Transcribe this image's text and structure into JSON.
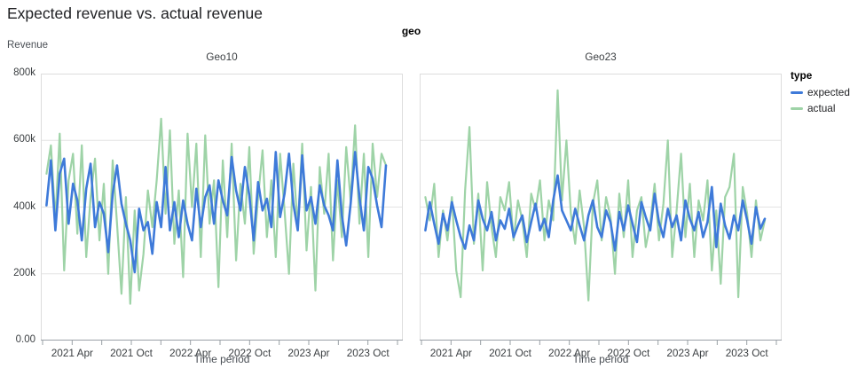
{
  "title": "Expected revenue vs. actual revenue",
  "chart_data": {
    "type": "line",
    "title": "Expected revenue vs. actual revenue",
    "facet_field": "geo",
    "x": {
      "label": "Time period",
      "start": "2021 Jan",
      "end": "2024 Jan",
      "months_span": 36,
      "ticks": [
        {
          "m": 0,
          "label": ""
        },
        {
          "m": 3,
          "label": "2021 Apr"
        },
        {
          "m": 6,
          "label": ""
        },
        {
          "m": 9,
          "label": "2021 Oct"
        },
        {
          "m": 12,
          "label": ""
        },
        {
          "m": 15,
          "label": "2022 Apr"
        },
        {
          "m": 18,
          "label": ""
        },
        {
          "m": 21,
          "label": "2022 Oct"
        },
        {
          "m": 24,
          "label": ""
        },
        {
          "m": 27,
          "label": "2023 Apr"
        },
        {
          "m": 30,
          "label": ""
        },
        {
          "m": 33,
          "label": "2023 Oct"
        },
        {
          "m": 36,
          "label": ""
        }
      ]
    },
    "y": {
      "label": "Revenue",
      "unit": "thousands",
      "max_k": 800,
      "ticks": [
        {
          "value_k": 0,
          "label": "0.00"
        },
        {
          "value_k": 200,
          "label": "200k"
        },
        {
          "value_k": 400,
          "label": "400k"
        },
        {
          "value_k": 600,
          "label": "600k"
        },
        {
          "value_k": 800,
          "label": "800k"
        }
      ]
    },
    "legend": {
      "title": "type",
      "items": [
        {
          "label": "expected",
          "color": "#3e7ad9"
        },
        {
          "label": "actual",
          "color": "#9ed3a7"
        }
      ]
    },
    "facets": [
      {
        "name": "Geo10",
        "series": [
          {
            "name": "expected",
            "color": "#3e7ad9",
            "values_k": [
              405,
              540,
              330,
              500,
              545,
              350,
              470,
              420,
              300,
              455,
              530,
              340,
              415,
              380,
              265,
              440,
              525,
              410,
              350,
              300,
              205,
              395,
              330,
              355,
              260,
              415,
              340,
              520,
              330,
              415,
              310,
              420,
              350,
              300,
              455,
              340,
              430,
              465,
              350,
              480,
              420,
              375,
              550,
              450,
              390,
              520,
              435,
              300,
              475,
              390,
              425,
              340,
              565,
              370,
              440,
              560,
              410,
              330,
              555,
              390,
              430,
              350,
              465,
              405,
              375,
              330,
              540,
              375,
              285,
              410,
              565,
              430,
              330,
              520,
              485,
              405,
              340,
              525
            ]
          },
          {
            "name": "actual",
            "color": "#9ed3a7",
            "values_k": [
              500,
              585,
              360,
              620,
              210,
              480,
              560,
              320,
              585,
              250,
              430,
              545,
              300,
              470,
              200,
              540,
              350,
              140,
              430,
              110,
              390,
              150,
              260,
              450,
              340,
              480,
              665,
              380,
              630,
              290,
              450,
              190,
              620,
              400,
              590,
              250,
              615,
              350,
              480,
              160,
              540,
              310,
              590,
              240,
              470,
              350,
              580,
              260,
              430,
              570,
              310,
              480,
              250,
              560,
              390,
              200,
              530,
              340,
              590,
              270,
              460,
              150,
              520,
              380,
              560,
              240,
              480,
              310,
              580,
              420,
              645,
              350,
              560,
              250,
              590,
              430,
              560,
              525
            ]
          }
        ]
      },
      {
        "name": "Geo23",
        "series": [
          {
            "name": "expected",
            "color": "#3e7ad9",
            "values_k": [
              330,
              415,
              350,
              290,
              380,
              330,
              415,
              360,
              310,
              275,
              345,
              300,
              420,
              365,
              330,
              385,
              300,
              360,
              335,
              395,
              310,
              345,
              375,
              295,
              355,
              410,
              330,
              365,
              310,
              420,
              495,
              390,
              360,
              330,
              395,
              345,
              300,
              375,
              420,
              340,
              310,
              390,
              355,
              270,
              385,
              330,
              405,
              350,
              295,
              415,
              370,
              330,
              440,
              355,
              310,
              395,
              340,
              375,
              300,
              420,
              365,
              330,
              385,
              310,
              355,
              460,
              280,
              410,
              345,
              305,
              375,
              330,
              420,
              360,
              290,
              400,
              335,
              365
            ]
          },
          {
            "name": "actual",
            "color": "#9ed3a7",
            "values_k": [
              430,
              360,
              470,
              250,
              390,
              300,
              430,
              210,
              130,
              450,
              640,
              290,
              440,
              210,
              475,
              340,
              250,
              430,
              390,
              475,
              300,
              420,
              360,
              250,
              440,
              390,
              480,
              300,
              420,
              360,
              750,
              420,
              600,
              380,
              290,
              450,
              340,
              120,
              410,
              480,
              300,
              430,
              370,
              200,
              440,
              310,
              480,
              250,
              390,
              430,
              280,
              350,
              470,
              300,
              410,
              600,
              250,
              390,
              560,
              310,
              470,
              250,
              420,
              360,
              480,
              210,
              390,
              170,
              430,
              460,
              560,
              130,
              460,
              380,
              250,
              420,
              300,
              360
            ]
          }
        ]
      }
    ],
    "layout": {
      "grid": "horizontal-only",
      "legend_position": "right",
      "shared_y_axis": true
    },
    "colors": {
      "grid": "#e3e3e3",
      "panel_border": "#dddddd",
      "axis_line": "#9aa0a6",
      "tick_label": "#3c4043"
    }
  }
}
